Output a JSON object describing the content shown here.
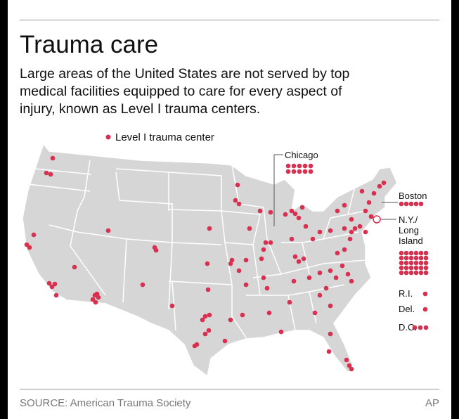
{
  "header": {
    "title": "Trauma care",
    "subtitle_lines": [
      "Large areas of the United States are not served by top",
      "medical facilities equipped to care for every aspect of",
      "injury, known as Level I trauma centers."
    ]
  },
  "legend": {
    "label": "Level I trauma center"
  },
  "callouts": {
    "chicago": "Chicago",
    "boston": "Boston",
    "new_york": [
      "N.Y./",
      "Long",
      "Island"
    ],
    "rhode_island": "R.I.",
    "delaware": "Del.",
    "dc": "D.C."
  },
  "footer": {
    "source": "SOURCE: American Trauma Society",
    "credit": "AP"
  }
}
